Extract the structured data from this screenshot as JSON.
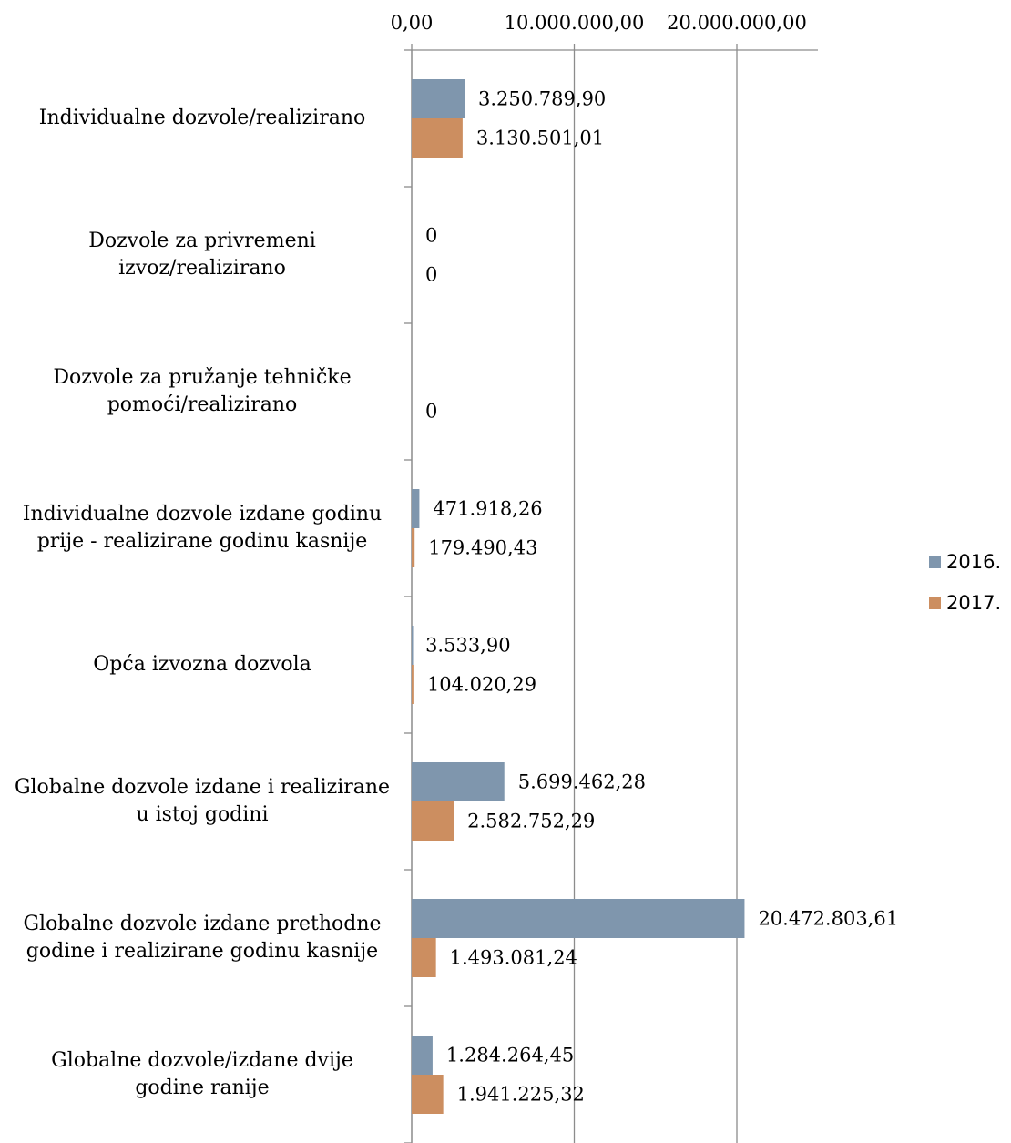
{
  "chart_data": {
    "type": "bar",
    "orientation": "horizontal",
    "title": "",
    "xlabel": "",
    "ylabel": "",
    "xlim": [
      0,
      25000000
    ],
    "x_ticks": [
      0,
      10000000,
      20000000
    ],
    "x_tick_labels": [
      "0,00",
      "10.000.000,00",
      "20.000.000,00"
    ],
    "x_axis_position": "top",
    "grid": true,
    "legend_position": "right",
    "categories": [
      "Individualne dozvole/realizirano",
      "Dozvole za privremeni izvoz/realizirano",
      "Dozvole za pružanje tehničke pomoći/realizirano",
      "Individualne dozvole izdane godinu prije - realizirane godinu kasnije",
      "Opća izvozna dozvola",
      "Globalne dozvole izdane i realizirane u istoj godini",
      "Globalne dozvole izdane prethodne godine i realizirane godinu kasnije",
      "Globalne dozvole/izdane dvije godine ranije"
    ],
    "category_lines": [
      [
        "Individualne dozvole/realizirano"
      ],
      [
        "Dozvole za privremeni",
        "izvoz/realizirano"
      ],
      [
        "Dozvole za pružanje tehničke",
        "pomoći/realizirano"
      ],
      [
        "Individualne dozvole izdane godinu",
        "prije - realizirane godinu kasnije"
      ],
      [
        "Opća izvozna dozvola"
      ],
      [
        "Globalne dozvole izdane i realizirane",
        "u istoj godini"
      ],
      [
        "Globalne dozvole izdane prethodne",
        "godine i realizirane godinu kasnije"
      ],
      [
        "Globalne dozvole/izdane dvije",
        "godine ranije"
      ]
    ],
    "series": [
      {
        "name": "2016.",
        "color": "#7f96ad",
        "values": [
          3250789.9,
          0,
          null,
          471918.26,
          3533.9,
          5699462.28,
          20472803.61,
          1284264.45
        ],
        "data_labels": [
          "3.250.789,90",
          "0",
          "",
          "471.918,26",
          "3.533,90",
          "5.699.462,28",
          "20.472.803,61",
          "1.284.264,45"
        ]
      },
      {
        "name": "2017.",
        "color": "#cc8e60",
        "values": [
          3130501.01,
          0,
          0,
          179490.43,
          104020.29,
          2582752.29,
          1493081.24,
          1941225.32
        ],
        "data_labels": [
          "3.130.501,01",
          "0",
          "0",
          "179.490,43",
          "104.020,29",
          "2.582.752,29",
          "1.493.081,24",
          "1.941.225,32"
        ]
      }
    ]
  }
}
